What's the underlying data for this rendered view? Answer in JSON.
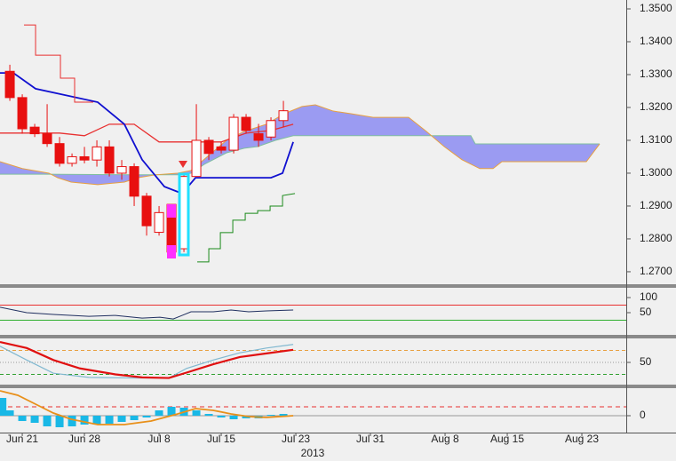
{
  "chart_data": [
    {
      "type": "candlestick",
      "xlim": [
        -1.79,
        48.57
      ],
      "ylim": [
        1.2662,
        1.3527
      ],
      "yticks": [
        {
          "value": 1.27,
          "label": "1.2700"
        },
        {
          "value": 1.28,
          "label": "1.2800"
        },
        {
          "value": 1.29,
          "label": "1.2900"
        },
        {
          "value": 1.3,
          "label": "1.3000"
        },
        {
          "value": 1.31,
          "label": "1.3100"
        },
        {
          "value": 1.32,
          "label": "1.3200"
        },
        {
          "value": 1.33,
          "label": "1.3300"
        },
        {
          "value": 1.34,
          "label": "1.3400"
        },
        {
          "value": 1.35,
          "label": "1.3500"
        }
      ],
      "up_color": "#ffffff",
      "down_color": "#e81010",
      "edge_color": "#e81010",
      "candles": {
        "x": [
          -1,
          0,
          1,
          2,
          3,
          4,
          5,
          6,
          7,
          8,
          9,
          10,
          11,
          12,
          13,
          14,
          15,
          16,
          17,
          18,
          19,
          20,
          21
        ],
        "open": [
          1.331,
          1.323,
          1.314,
          1.312,
          1.309,
          1.303,
          1.305,
          1.304,
          1.308,
          1.3,
          1.302,
          1.293,
          1.282,
          1.2905,
          1.277,
          1.299,
          1.31,
          1.308,
          1.307,
          1.317,
          1.312,
          1.311,
          1.316
        ],
        "high": [
          1.333,
          1.324,
          1.315,
          1.321,
          1.311,
          1.306,
          1.308,
          1.31,
          1.31,
          1.304,
          1.303,
          1.294,
          1.29,
          1.2905,
          1.3,
          1.321,
          1.311,
          1.3095,
          1.318,
          1.318,
          1.315,
          1.317,
          1.322
        ],
        "low": [
          1.322,
          1.312,
          1.311,
          1.308,
          1.302,
          1.302,
          1.303,
          1.302,
          1.299,
          1.298,
          1.29,
          1.281,
          1.281,
          1.2745,
          1.276,
          1.299,
          1.304,
          1.306,
          1.306,
          1.312,
          1.308,
          1.31,
          1.314
        ],
        "close": [
          1.323,
          1.3135,
          1.312,
          1.309,
          1.303,
          1.305,
          1.304,
          1.308,
          1.3,
          1.302,
          1.293,
          1.284,
          1.288,
          1.276,
          1.299,
          1.31,
          1.306,
          1.307,
          1.317,
          1.313,
          1.31,
          1.316,
          1.319
        ]
      },
      "cloud_color": "#9b9bf2",
      "series": [
        {
          "color": "#7fbf9f",
          "width": 1,
          "cloud": true,
          "x": [
            -1.79,
            1.79,
            8.93,
            12.5,
            13.57,
            14.64,
            16.43,
            17.86,
            18.93,
            20.36,
            21.79,
            36.07,
            36.43,
            46.43
          ],
          "values": [
            1.2997,
            1.2997,
            1.2995,
            1.2995,
            1.3,
            1.3027,
            1.3062,
            1.3076,
            1.3081,
            1.31,
            1.3114,
            1.3114,
            1.3089,
            1.3089
          ]
        },
        {
          "color": "#e8a040",
          "width": 1,
          "cloud": true,
          "x": [
            -1.79,
            0,
            2.14,
            2.86,
            3.93,
            6.07,
            8.21,
            9.29,
            10.71,
            12.5,
            13.57,
            15,
            16.43,
            17.86,
            19.64,
            21.07,
            22.5,
            23.57,
            25,
            26.43,
            28.21,
            31.07,
            32.5,
            33.93,
            35.36,
            36.79,
            37.86,
            38.57,
            45.36,
            46.43
          ],
          "values": [
            1.3035,
            1.3014,
            1.3,
            1.2986,
            1.2973,
            1.2965,
            1.2973,
            1.2986,
            1.2995,
            1.3,
            1.3008,
            1.3054,
            1.31,
            1.3127,
            1.3149,
            1.3181,
            1.3203,
            1.3208,
            1.3189,
            1.3181,
            1.317,
            1.317,
            1.3127,
            1.3081,
            1.3041,
            1.3014,
            1.3014,
            1.3035,
            1.3035,
            1.3089
          ]
        },
        {
          "color": "#e83030",
          "width": 1.3,
          "x": [
            -1.79,
            3,
            5,
            7,
            9,
            11,
            16,
            18,
            20,
            21.79
          ],
          "values": [
            1.3122,
            1.3122,
            1.3114,
            1.3149,
            1.3149,
            1.3095,
            1.3095,
            1.3122,
            1.313,
            1.3149
          ]
        },
        {
          "color": "#1010d0",
          "width": 1.8,
          "x": [
            -1.79,
            -0.71,
            1.07,
            6.07,
            8.21,
            9.64,
            11.43,
            12.86,
            13.93,
            20,
            20.93,
            21.79
          ],
          "values": [
            1.3305,
            1.3305,
            1.3257,
            1.3216,
            1.3149,
            1.3041,
            1.2959,
            1.2938,
            1.2986,
            1.2986,
            1.3,
            1.3095
          ]
        },
        {
          "color": "#e83030",
          "width": 1,
          "x": [
            0.14,
            1.07,
            1.07,
            3.07,
            3.07,
            4.21,
            4.21,
            5.71
          ],
          "values": [
            1.3451,
            1.3451,
            1.3359,
            1.3359,
            1.3289,
            1.3289,
            1.3216,
            1.3216
          ]
        },
        {
          "color": "#1a8a1a",
          "width": 1,
          "x": [
            14.07,
            15,
            15,
            15.93,
            15.93,
            16.93,
            16.93,
            17.93,
            17.93,
            18.93,
            18.93,
            19.93,
            19.93,
            20.93,
            20.93,
            21.93
          ],
          "values": [
            1.273,
            1.273,
            1.277,
            1.277,
            1.2819,
            1.2819,
            1.2857,
            1.2857,
            1.2878,
            1.2878,
            1.2886,
            1.2886,
            1.29,
            1.29,
            1.2932,
            1.2938
          ]
        }
      ]
    },
    {
      "type": "line",
      "xlim": [
        -1.79,
        48.57
      ],
      "ylim": [
        -23.5,
        132.4
      ],
      "yticks": [
        50,
        100
      ],
      "levels": [
        {
          "value": 75,
          "color": "#e83030",
          "dash": ""
        },
        {
          "value": 25,
          "color": "#30b030",
          "dash": ""
        }
      ],
      "series": [
        {
          "color": "#203060",
          "width": 1,
          "x": [
            -1.79,
            0.36,
            2.5,
            5.36,
            7.5,
            9.64,
            11.07,
            12.14,
            12.86,
            13.57,
            15.36,
            16.79,
            18.21,
            19.64,
            21.79
          ],
          "values": [
            68,
            50,
            44,
            38,
            41,
            32,
            35,
            29,
            41,
            53,
            53,
            59,
            53,
            56,
            59
          ]
        }
      ]
    },
    {
      "type": "line",
      "xlim": [
        -1.79,
        48.57
      ],
      "ylim": [
        13,
        90
      ],
      "yticks": [
        50
      ],
      "levels": [
        {
          "value": 70,
          "color": "#e8a040",
          "dash": "4,3"
        },
        {
          "value": 50,
          "color": "#999999",
          "dash": "1,2"
        },
        {
          "value": 30,
          "color": "#30a030",
          "dash": "4,3"
        }
      ],
      "series": [
        {
          "color": "#80b8d0",
          "width": 1.2,
          "x": [
            -1.79,
            0.36,
            2.5,
            5.36,
            8.93,
            11.79,
            13.21,
            15.36,
            17.5,
            19.64,
            21.79
          ],
          "values": [
            77,
            54,
            32,
            25,
            24,
            24,
            40,
            54,
            66,
            74,
            80
          ]
        },
        {
          "color": "#e01010",
          "width": 2.2,
          "x": [
            -1.79,
            0.36,
            2.5,
            4.64,
            7.5,
            9.64,
            11.79,
            13.21,
            15.36,
            17.5,
            19.64,
            21.79
          ],
          "values": [
            84,
            74,
            54,
            40,
            30,
            25,
            24,
            33,
            47,
            59,
            65,
            71
          ]
        }
      ]
    },
    {
      "type": "histogram-line",
      "xlim": [
        -1.79,
        48.57
      ],
      "ylim": [
        -1.9,
        3.1
      ],
      "yticks": [
        0
      ],
      "levels": [
        {
          "value": 0,
          "color": "#999999",
          "dash": ""
        },
        {
          "value": 1,
          "color": "#e83030",
          "dash": "5,4"
        }
      ],
      "histogram": {
        "color": "#19b8e6",
        "x": [
          -1.6,
          -1,
          0,
          1,
          2,
          3,
          4,
          5,
          6,
          7,
          8,
          9,
          10,
          11,
          12,
          13,
          14,
          15,
          16,
          17,
          18,
          19,
          20,
          21
        ],
        "values": [
          2.0,
          0.6,
          -0.6,
          -0.8,
          -1.2,
          -1.3,
          -1.2,
          -1.0,
          -1.0,
          -0.9,
          -0.7,
          -0.5,
          -0.2,
          0.6,
          1.0,
          0.9,
          0.6,
          0.2,
          -0.2,
          -0.4,
          -0.3,
          -0.3,
          0.1,
          0.2
        ]
      },
      "series": [
        {
          "color": "#e8901a",
          "width": 1.8,
          "x": [
            -1.79,
            -0.36,
            1.07,
            2.5,
            3.93,
            6.07,
            8.21,
            10.36,
            12.5,
            13.93,
            15.36,
            16.79,
            18.21,
            19.64,
            21.79
          ],
          "values": [
            2.8,
            2.3,
            1.3,
            0.3,
            -0.4,
            -1.0,
            -1.0,
            -0.6,
            0.2,
            0.8,
            0.6,
            0.2,
            -0.1,
            -0.2,
            0
          ]
        }
      ],
      "xticks": [
        {
          "value": 0,
          "label": "Jun 21"
        },
        {
          "value": 5,
          "label": "Jun 28"
        },
        {
          "value": 11,
          "label": "Jul 8"
        },
        {
          "value": 16,
          "label": "Jul 15"
        },
        {
          "value": 22,
          "label": "Jul 23"
        },
        {
          "value": 28,
          "label": "Jul 31"
        },
        {
          "value": 34,
          "label": "Aug 8"
        },
        {
          "value": 39,
          "label": "Aug 15"
        },
        {
          "value": 45,
          "label": "Aug 23"
        }
      ],
      "xlabel": "2013"
    }
  ]
}
